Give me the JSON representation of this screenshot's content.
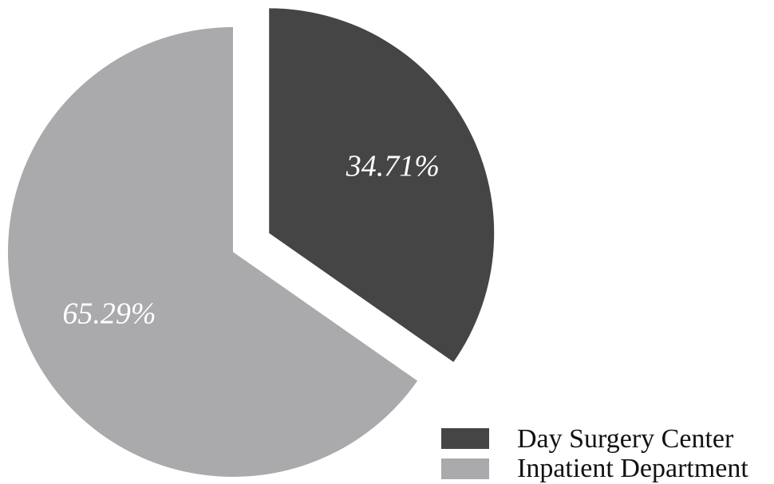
{
  "chart_data": {
    "type": "pie",
    "series": [
      {
        "name": "Day Surgery Center",
        "value": 34.71,
        "label": "34.71%",
        "color": "#454545",
        "exploded": true
      },
      {
        "name": "Inpatient Department",
        "value": 65.29,
        "label": "65.29%",
        "color": "#aaaaad",
        "exploded": false
      }
    ],
    "legend_position": "bottom-right"
  }
}
